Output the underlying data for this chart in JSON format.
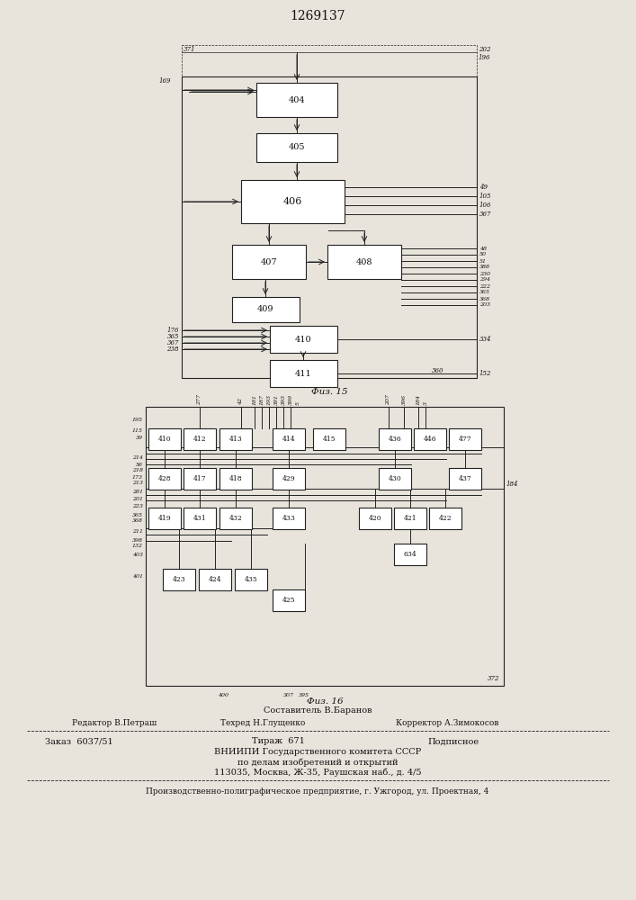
{
  "title": "1269137",
  "fig15_label": "Физ. 15",
  "fig16_label": "Физ. 16",
  "bg_color": "#e8e4dc",
  "footer": {
    "compiled_by": "Составитель В.Баранов",
    "editor_label": "Редактор В.Петраш",
    "techred_label": "Техред Н.Глущенко",
    "corrector_label": "Корректор А.Зимокосов",
    "order": "Заказ  6037/51",
    "tirazh": "Тираж  671",
    "podpisnoe": "Подписное",
    "org1": "ВНИИПИ Государственного комитета СССР",
    "org2": "по делам изобретений и открытий",
    "address": "113035, Москва, Ж-35, Раушская наб., д. 4/5",
    "enterprise": "Производственно-полиграфическое предприятие, г. Ужгород, ул. Проектная, 4"
  }
}
